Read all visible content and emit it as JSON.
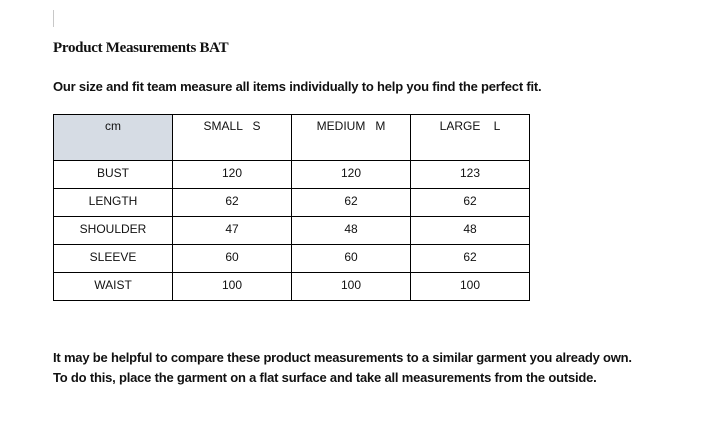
{
  "document": {
    "title": "Product Measurements BAT",
    "intro": "Our size and fit team measure all items individually to help you find the perfect fit.",
    "table": {
      "headers": [
        "cm",
        "SMALL   S",
        "MEDIUM   M",
        "LARGE    L"
      ],
      "rows": [
        [
          "BUST",
          "120",
          "120",
          "123"
        ],
        [
          "LENGTH",
          "62",
          "62",
          "62"
        ],
        [
          "SHOULDER",
          "47",
          "48",
          "48"
        ],
        [
          "SLEEVE",
          "60",
          "60",
          "62"
        ],
        [
          "WAIST",
          "100",
          "100",
          "100"
        ]
      ],
      "header_fill": "#d6dce4"
    },
    "outro_lines": [
      "It may be helpful to compare these product measurements to a similar garment you already own.",
      "To do this, place the garment on a flat surface and take all measurements from the outside."
    ]
  }
}
